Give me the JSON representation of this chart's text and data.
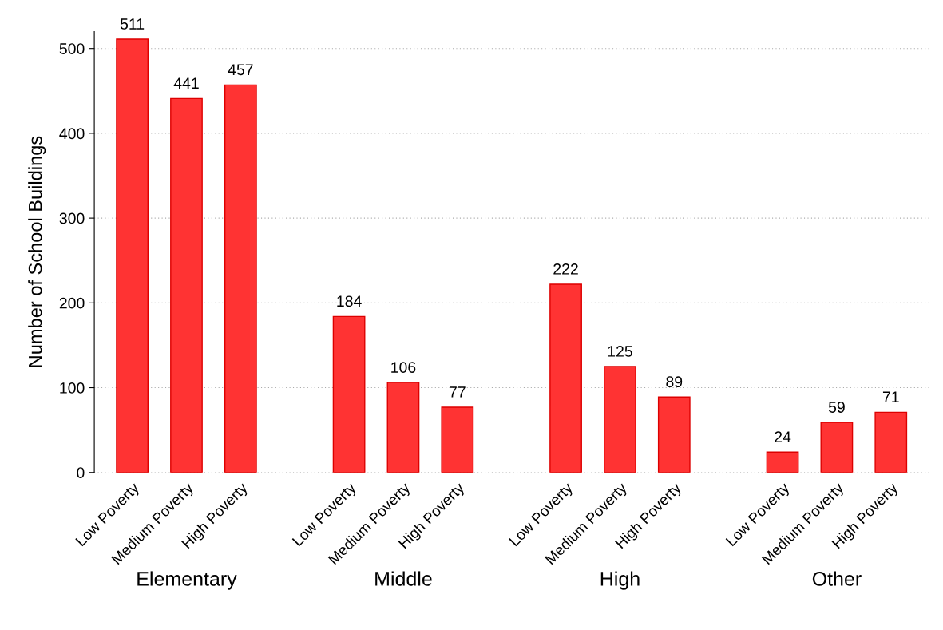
{
  "chart_data": {
    "type": "bar",
    "ylabel": "Number of School Buildings",
    "categories": [
      "Low Poverty",
      "Medium Poverty",
      "High Poverty",
      null,
      "Low Poverty",
      "Medium Poverty",
      "High Poverty",
      null,
      "Low Poverty",
      "Medium Poverty",
      "High Poverty",
      null,
      "Low Poverty",
      "Medium Poverty",
      "High Poverty"
    ],
    "values": [
      511,
      441,
      457,
      null,
      184,
      106,
      77,
      null,
      222,
      125,
      89,
      null,
      24,
      59,
      71
    ],
    "color": "#ff3333",
    "ylim": [
      0,
      520
    ],
    "yticks": [
      0,
      100,
      200,
      300,
      400,
      500
    ],
    "grid": "y",
    "data_labels": true,
    "annotations": [
      "Elementary",
      "Middle",
      "High",
      "Other"
    ]
  }
}
